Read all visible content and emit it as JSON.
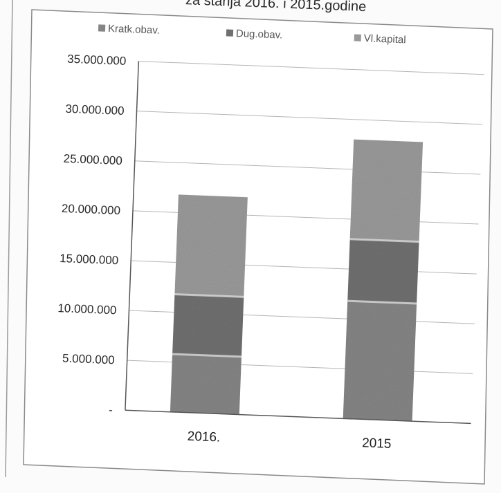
{
  "chart_data": {
    "type": "bar",
    "stacked": true,
    "title": "za stanja 2016. i 2015.godine",
    "xlabel": "",
    "ylabel": "",
    "categories": [
      "2016.",
      "2015"
    ],
    "series": [
      {
        "name": "Kratk.obav.",
        "values": [
          5800000,
          11800000
        ]
      },
      {
        "name": "Dug.obav.",
        "values": [
          6000000,
          6200000
        ]
      },
      {
        "name": "Vl.kapital",
        "values": [
          10000000,
          10000000
        ]
      }
    ],
    "ylim": [
      0,
      35000000
    ],
    "yticks": [
      0,
      5000000,
      10000000,
      15000000,
      20000000,
      25000000,
      30000000,
      35000000
    ],
    "ytick_labels": [
      "-",
      "5.000.000",
      "10.000.000",
      "15.000.000",
      "20.000.000",
      "25.000.000",
      "30.000.000",
      "35.000.000"
    ],
    "legend_position": "top",
    "grid": true,
    "colors": {
      "series": [
        "#858585",
        "#707070",
        "#9a9a9a"
      ],
      "grid": "#b5b5b5",
      "border": "#8a8a8a"
    }
  }
}
